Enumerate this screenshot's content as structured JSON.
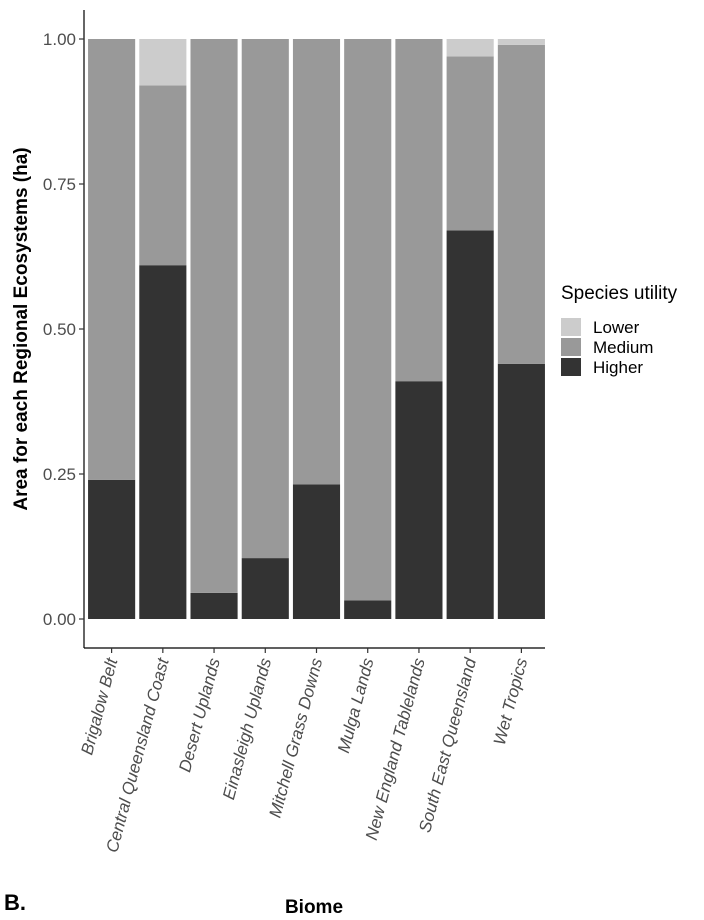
{
  "panel_label": "B.",
  "chart_data": {
    "type": "bar",
    "stacked": true,
    "xlabel": "Biome",
    "ylabel": "Area for each Regional Ecosystems (ha)",
    "ylim": [
      0,
      1
    ],
    "yticks": [
      "0.00",
      "0.25",
      "0.50",
      "0.75",
      "1.00"
    ],
    "categories": [
      "Brigalow Belt",
      "Central Queensland Coast",
      "Desert Uplands",
      "Einasleigh Uplands",
      "Mitchell Grass Downs",
      "Mulga Lands",
      "New England Tablelands",
      "South East Queensland",
      "Wet Tropics"
    ],
    "series": [
      {
        "name": "Higher",
        "color": "#333333",
        "values": [
          0.24,
          0.61,
          0.045,
          0.105,
          0.232,
          0.032,
          0.41,
          0.67,
          0.44
        ]
      },
      {
        "name": "Medium",
        "color": "#999999",
        "values": [
          0.76,
          0.31,
          0.955,
          0.895,
          0.768,
          0.968,
          0.59,
          0.3,
          0.55
        ]
      },
      {
        "name": "Lower",
        "color": "#cccccc",
        "values": [
          0.0,
          0.08,
          0.0,
          0.0,
          0.0,
          0.0,
          0.0,
          0.03,
          0.01
        ]
      }
    ],
    "legend": {
      "title": "Species utility",
      "position": "right",
      "entries": [
        {
          "label": "Lower",
          "color": "#cccccc"
        },
        {
          "label": "Medium",
          "color": "#999999"
        },
        {
          "label": "Higher",
          "color": "#333333"
        }
      ]
    },
    "grid": false
  }
}
